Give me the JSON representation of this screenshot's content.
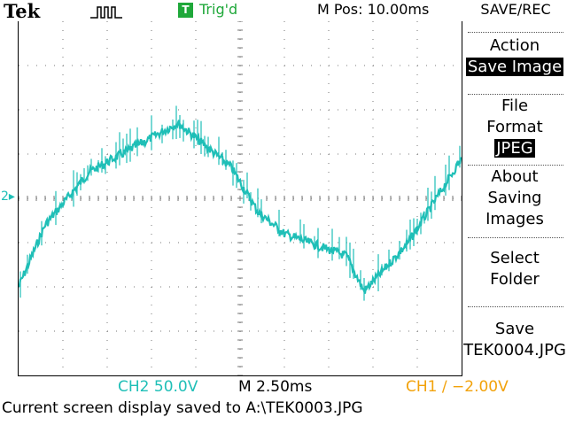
{
  "header": {
    "brand": "Tek",
    "trigger_badge": "T",
    "trigger_status": "Trig'd",
    "position": "M Pos: 10.00ms"
  },
  "menu": {
    "title": "SAVE/REC",
    "action_label": "Action",
    "action_value": "Save Image",
    "file_format_line1": "File",
    "file_format_line2": "Format",
    "file_format_value": "JPEG",
    "about_line1": "About",
    "about_line2": "Saving",
    "about_line3": "Images",
    "select_line1": "Select",
    "select_line2": "Folder",
    "save_line1": "Save",
    "save_line2": "TEK0004.JPG"
  },
  "screen": {
    "ground_marker": "2"
  },
  "footer": {
    "ch2": "CH2  50.0V",
    "timebase": "M 2.50ms",
    "ch1": "CH1 ∕ −2.00V",
    "status": "Current screen display saved to A:\\TEK0003.JPG"
  },
  "colors": {
    "trace": "#1fbfb7",
    "trigger": "#1fa83a",
    "ch1": "#f2a20a"
  }
}
